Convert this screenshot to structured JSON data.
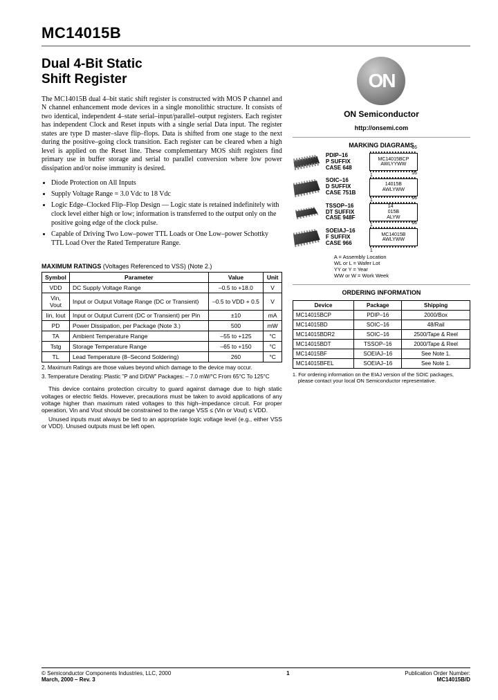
{
  "part_number": "MC14015B",
  "title_line1": "Dual 4-Bit Static",
  "title_line2": "Shift Register",
  "description": "The MC14015B dual 4–bit static shift register is constructed with MOS P channel and N channel enhancement mode devices in a single monolithic structure. It consists of two identical, independent 4–state serial–input/parallel–output registers. Each register has independent Clock and Reset inputs with a single serial Data input. The register states are type D master–slave flip–flops. Data is shifted from one stage to the next during the positive–going clock transition. Each register can be cleared when a high level is applied on the Reset line. These complementary MOS shift registers find primary use in buffer storage and serial to parallel conversion where low power dissipation and/or noise immunity is desired.",
  "bullets": [
    "Diode Protection on All Inputs",
    "Supply Voltage Range = 3.0 Vdc to 18 Vdc",
    "Logic Edge–Clocked Flip–Flop Design — Logic state is retained indefinitely with clock level either high or low; information is transferred to the output only on the positive going edge of the clock pulse.",
    "Capable of Driving Two Low–power TTL Loads or One Low–power Schottky TTL Load Over the Rated Temperature Range."
  ],
  "ratings_title": "MAXIMUM RATINGS",
  "ratings_subtitle": "(Voltages Referenced to VSS) (Note 2.)",
  "ratings_headers": [
    "Symbol",
    "Parameter",
    "Value",
    "Unit"
  ],
  "ratings_rows": [
    [
      "VDD",
      "DC Supply Voltage Range",
      "–0.5 to +18.0",
      "V"
    ],
    [
      "Vin, Vout",
      "Input or Output Voltage Range (DC or Transient)",
      "–0.5 to VDD + 0.5",
      "V"
    ],
    [
      "Iin, Iout",
      "Input or Output Current (DC or Transient) per Pin",
      "±10",
      "mA"
    ],
    [
      "PD",
      "Power Dissipation, per Package (Note 3.)",
      "500",
      "mW"
    ],
    [
      "TA",
      "Ambient Temperature Range",
      "–55 to +125",
      "°C"
    ],
    [
      "Tstg",
      "Storage Temperature Range",
      "–65 to +150",
      "°C"
    ],
    [
      "TL",
      "Lead Temperature (8–Second Soldering)",
      "260",
      "°C"
    ]
  ],
  "note2": "2. Maximum Ratings are those values beyond which damage to the device may occur.",
  "note3": "3. Temperature Derating: Plastic \"P and D/DW\" Packages: – 7.0 mW/°C From 65°C To 125°C",
  "bottom_para1": "This device contains protection circuitry to guard against damage due to high static voltages or electric fields. However, precautions must be taken to avoid applications of any voltage higher than maximum rated voltages to this high–impedance circuit. For proper operation, Vin and Vout should be constrained to the range VSS ≤ (Vin or Vout) ≤ VDD.",
  "bottom_para2": "Unused inputs must always be tied to an appropriate logic voltage level (e.g., either VSS or VDD). Unused outputs must be left open.",
  "company_name": "ON Semiconductor",
  "company_url": "http://onsemi.com",
  "marking_title": "MARKING DIAGRAMS",
  "packages": [
    {
      "name": "PDIP–16",
      "suffix": "P SUFFIX",
      "case": "CASE 648",
      "mark1": "MC14015BCP",
      "mark2": "AWLYYWW",
      "chip": "dip"
    },
    {
      "name": "SOIC–16",
      "suffix": "D SUFFIX",
      "case": "CASE 751B",
      "mark1": "14015B",
      "mark2": "AWLYWW",
      "chip": "chip"
    },
    {
      "name": "TSSOP–16",
      "suffix": "DT SUFFIX",
      "case": "CASE 948F",
      "mark1": "14\n015B",
      "mark2": "ALYW",
      "chip": "flat"
    },
    {
      "name": "SOEIAJ–16",
      "suffix": "F SUFFIX",
      "case": "CASE 966",
      "mark1": "MC14015B",
      "mark2": "AWLYWW",
      "chip": "chip"
    }
  ],
  "legend_lines": [
    "A        = Assembly Location",
    "WL or L = Wafer Lot",
    "YY or Y  = Year",
    "WW or W = Work Week"
  ],
  "ordering_title": "ORDERING INFORMATION",
  "ordering_headers": [
    "Device",
    "Package",
    "Shipping"
  ],
  "ordering_rows": [
    [
      "MC14015BCP",
      "PDIP–16",
      "2000/Box"
    ],
    [
      "MC14015BD",
      "SOIC–16",
      "48/Rail"
    ],
    [
      "MC14015BDR2",
      "SOIC–16",
      "2500/Tape & Reel"
    ],
    [
      "MC14015BDT",
      "TSSOP–16",
      "2000/Tape & Reel"
    ],
    [
      "MC14015BF",
      "SOEIAJ–16",
      "See Note 1."
    ],
    [
      "MC14015BFEL",
      "SOEIAJ–16",
      "See Note 1."
    ]
  ],
  "order_note": "1. For ordering information on the EIAJ version of the SOIC packages, please contact your local ON Semiconductor representative.",
  "footer_copyright": "© Semiconductor Components Industries, LLC, 2000",
  "footer_date": "March, 2000 – Rev. 3",
  "footer_page": "1",
  "footer_pub_label": "Publication Order Number:",
  "footer_pub": "MC14015B/D",
  "logo_text": "ON",
  "pin16": "16",
  "pin1": "1"
}
